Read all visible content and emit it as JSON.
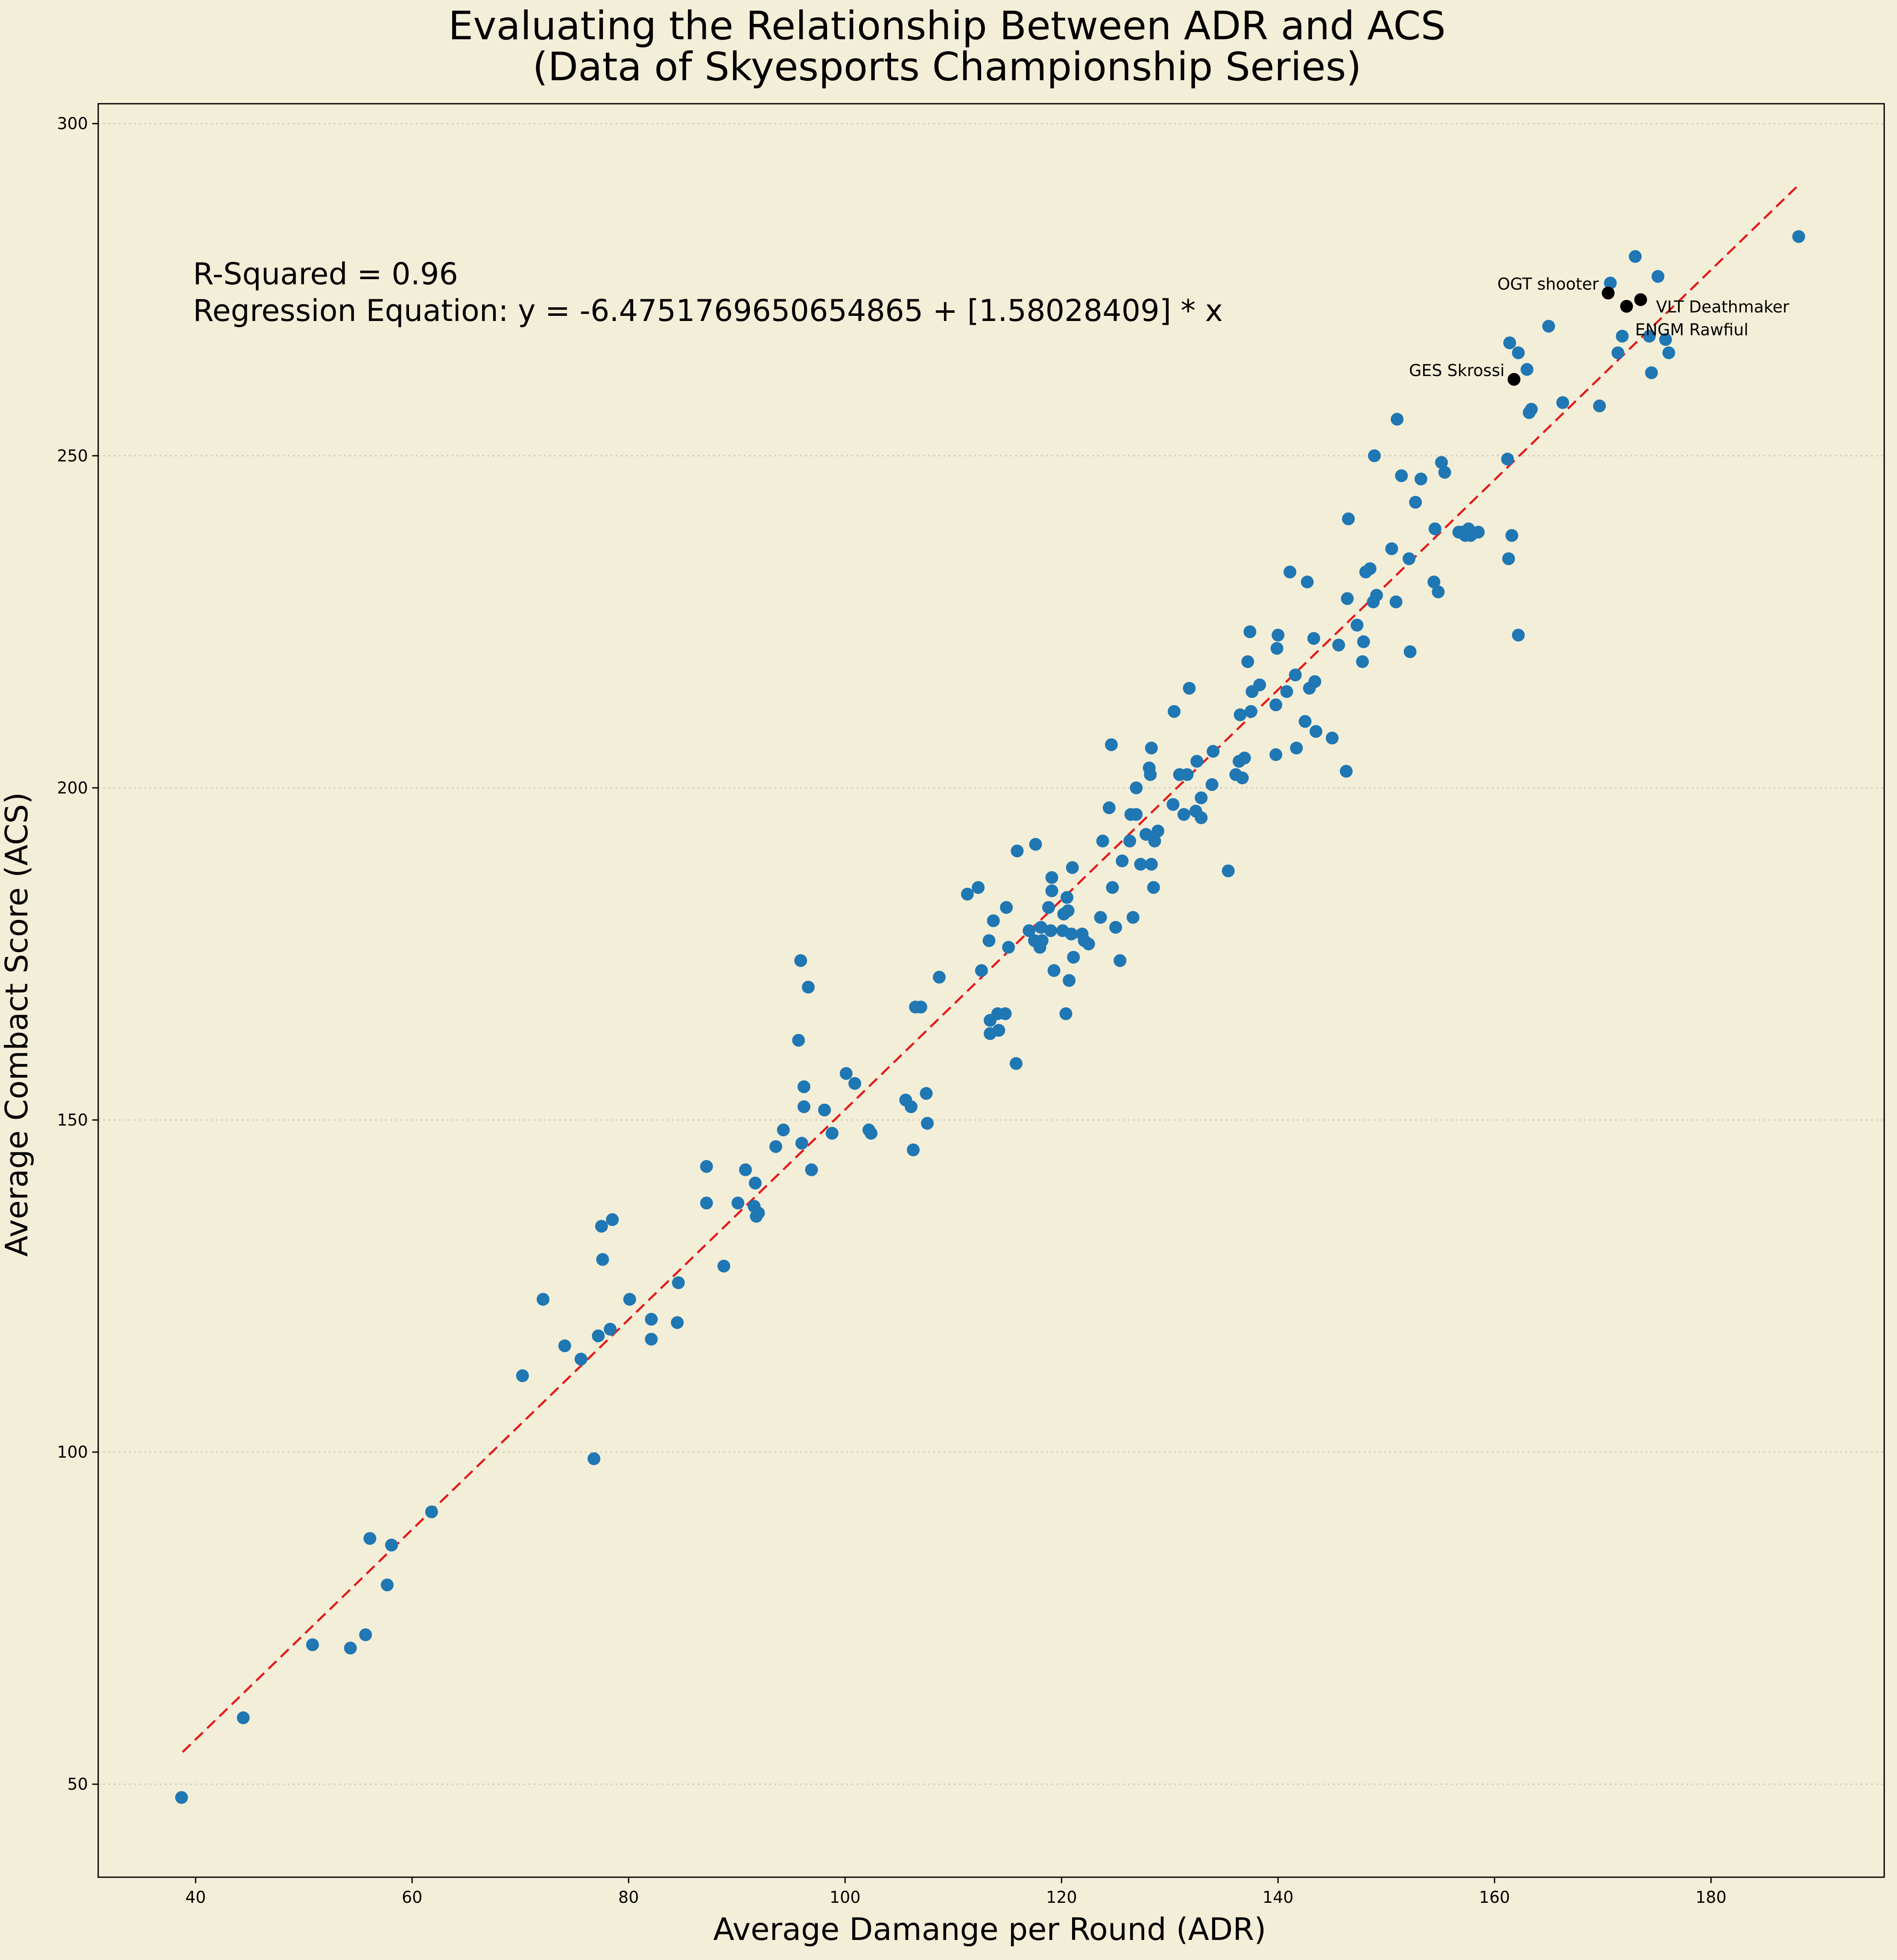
{
  "chart_data": {
    "type": "scatter",
    "title": "Evaluating the Relationship Between ADR  and ACS\n(Data of Skyesports Championship Series)",
    "xlabel": "Average Damange per Round (ADR)",
    "ylabel": "Average Combact Score (ACS)",
    "xlim": [
      31,
      196
    ],
    "ylim": [
      36,
      303
    ],
    "x_ticks": [
      40,
      60,
      80,
      100,
      120,
      140,
      160,
      180
    ],
    "y_ticks": [
      50,
      100,
      150,
      200,
      250,
      300
    ],
    "grid": "horizontal dotted",
    "annotation_text": [
      "R-Squared = 0.96",
      "Regression Equation: y = -6.4751769650654865 + [1.58028409] * x"
    ],
    "regression": {
      "intercept": -6.4751769650654865,
      "slope": 1.58028409,
      "x_range": [
        38.8,
        188.1
      ],
      "color": "#e41a1c"
    },
    "point_color": "#1f77b4",
    "highlight_color": "#000000",
    "series": [
      {
        "points": [
          [
            38.7,
            48
          ],
          [
            44.4,
            60
          ],
          [
            50.8,
            71
          ],
          [
            54.3,
            70.5
          ],
          [
            55.7,
            72.5
          ],
          [
            56.1,
            87
          ],
          [
            57.7,
            80
          ],
          [
            58.1,
            86
          ],
          [
            61.8,
            91
          ],
          [
            70.2,
            111.5
          ],
          [
            72.1,
            123
          ],
          [
            74.1,
            116
          ],
          [
            75.6,
            114
          ],
          [
            76.8,
            99
          ],
          [
            77.2,
            117.5
          ],
          [
            77.6,
            129
          ],
          [
            77.5,
            134
          ],
          [
            78.5,
            135
          ],
          [
            78.3,
            118.5
          ],
          [
            80.1,
            123
          ],
          [
            82.1,
            117
          ],
          [
            82.1,
            120
          ],
          [
            84.5,
            119.5
          ],
          [
            84.6,
            125.5
          ],
          [
            87.2,
            143
          ],
          [
            87.2,
            137.5
          ],
          [
            88.8,
            128
          ],
          [
            90.1,
            137.5
          ],
          [
            90.8,
            142.5
          ],
          [
            91.7,
            140.5
          ],
          [
            91.6,
            137
          ],
          [
            91.8,
            135.5
          ],
          [
            92,
            136
          ],
          [
            93.6,
            146
          ],
          [
            94.3,
            148.5
          ],
          [
            95.7,
            162
          ],
          [
            95.9,
            174
          ],
          [
            96,
            146.5
          ],
          [
            96.2,
            152
          ],
          [
            96.2,
            155
          ],
          [
            96.6,
            170
          ],
          [
            96.9,
            142.5
          ],
          [
            98.1,
            151.5
          ],
          [
            98.8,
            148
          ],
          [
            100.1,
            157
          ],
          [
            100.9,
            155.5
          ],
          [
            102.2,
            148.5
          ],
          [
            102.4,
            148
          ],
          [
            105.6,
            153
          ],
          [
            106.1,
            152
          ],
          [
            106.3,
            145.5
          ],
          [
            106.5,
            167
          ],
          [
            107,
            167
          ],
          [
            107.5,
            154
          ],
          [
            107.6,
            149.5
          ],
          [
            108.7,
            171.5
          ],
          [
            111.3,
            184
          ],
          [
            112.3,
            185
          ],
          [
            112.6,
            172.5
          ],
          [
            113.3,
            177
          ],
          [
            113.4,
            165
          ],
          [
            113.4,
            163
          ],
          [
            113.7,
            180
          ],
          [
            114.1,
            166
          ],
          [
            114.2,
            163.5
          ],
          [
            114.8,
            166
          ],
          [
            114.9,
            182
          ],
          [
            115.1,
            176
          ],
          [
            115.8,
            158.5
          ],
          [
            115.9,
            190.5
          ],
          [
            117,
            178.5
          ],
          [
            117.5,
            177
          ],
          [
            117.6,
            191.5
          ],
          [
            118,
            176
          ],
          [
            118.1,
            179
          ],
          [
            118.2,
            177
          ],
          [
            118.8,
            182
          ],
          [
            119.1,
            184.5
          ],
          [
            119.1,
            186.5
          ],
          [
            119,
            178.5
          ],
          [
            119.3,
            172.5
          ],
          [
            120.1,
            178.5
          ],
          [
            120.2,
            181
          ],
          [
            120.4,
            166
          ],
          [
            120.5,
            183.5
          ],
          [
            120.6,
            181.5
          ],
          [
            120.7,
            171
          ],
          [
            120.9,
            178
          ],
          [
            121,
            188
          ],
          [
            121.1,
            174.5
          ],
          [
            121.9,
            178
          ],
          [
            122.1,
            177
          ],
          [
            122.5,
            176.5
          ],
          [
            123.6,
            180.5
          ],
          [
            123.8,
            192
          ],
          [
            124.4,
            197
          ],
          [
            124.6,
            206.5
          ],
          [
            124.7,
            185
          ],
          [
            125,
            179
          ],
          [
            125.4,
            174
          ],
          [
            125.6,
            189
          ],
          [
            126.3,
            192
          ],
          [
            126.4,
            196
          ],
          [
            126.6,
            180.5
          ],
          [
            126.9,
            196
          ],
          [
            126.9,
            200
          ],
          [
            127.3,
            188.5
          ],
          [
            127.8,
            193
          ],
          [
            128.1,
            203
          ],
          [
            128.2,
            202
          ],
          [
            128.3,
            188.5
          ],
          [
            128.3,
            206
          ],
          [
            128.5,
            185
          ],
          [
            128.6,
            192
          ],
          [
            128.9,
            193.5
          ],
          [
            130.3,
            197.5
          ],
          [
            130.4,
            211.5
          ],
          [
            130.9,
            202
          ],
          [
            131.3,
            196
          ],
          [
            131.6,
            202
          ],
          [
            131.8,
            215
          ],
          [
            132.4,
            196.5
          ],
          [
            132.5,
            204
          ],
          [
            132.9,
            198.5
          ],
          [
            132.9,
            195.5
          ],
          [
            133.9,
            200.5
          ],
          [
            134,
            205.5
          ],
          [
            135.4,
            187.5
          ],
          [
            136.1,
            202
          ],
          [
            136.4,
            204
          ],
          [
            136.5,
            211
          ],
          [
            136.7,
            201.5
          ],
          [
            136.9,
            204.5
          ],
          [
            137.2,
            219
          ],
          [
            137.4,
            223.5
          ],
          [
            137.5,
            211.5
          ],
          [
            137.6,
            214.5
          ],
          [
            138.3,
            215.5
          ],
          [
            139.8,
            205
          ],
          [
            139.8,
            212.5
          ],
          [
            139.9,
            221
          ],
          [
            140,
            223
          ],
          [
            140.8,
            214.5
          ],
          [
            141.1,
            232.5
          ],
          [
            141.6,
            217
          ],
          [
            141.7,
            206
          ],
          [
            142.5,
            210
          ],
          [
            142.7,
            231
          ],
          [
            142.9,
            215
          ],
          [
            143.3,
            222.5
          ],
          [
            143.4,
            216
          ],
          [
            143.5,
            208.5
          ],
          [
            145,
            207.5
          ],
          [
            145.6,
            221.5
          ],
          [
            146.3,
            202.5
          ],
          [
            146.4,
            228.5
          ],
          [
            146.5,
            240.5
          ],
          [
            147.3,
            224.5
          ],
          [
            147.8,
            219
          ],
          [
            147.9,
            222
          ],
          [
            148.1,
            232.5
          ],
          [
            148.5,
            233
          ],
          [
            148.8,
            228
          ],
          [
            148.9,
            250
          ],
          [
            149.1,
            229
          ],
          [
            150.5,
            236
          ],
          [
            150.9,
            228
          ],
          [
            151,
            255.5
          ],
          [
            151.4,
            247
          ],
          [
            152.1,
            234.5
          ],
          [
            152.2,
            220.5
          ],
          [
            152.7,
            243
          ],
          [
            153.2,
            246.5
          ],
          [
            154.4,
            231
          ],
          [
            154.5,
            239
          ],
          [
            154.8,
            229.5
          ],
          [
            155.1,
            249
          ],
          [
            155.4,
            247.5
          ],
          [
            156.7,
            238.5
          ],
          [
            157,
            238.5
          ],
          [
            157.3,
            238
          ],
          [
            157.6,
            239
          ],
          [
            157.8,
            238
          ],
          [
            158.5,
            238.5
          ],
          [
            161.2,
            249.5
          ],
          [
            161.3,
            234.5
          ],
          [
            161.4,
            267
          ],
          [
            161.6,
            238
          ],
          [
            162.2,
            223
          ],
          [
            162.2,
            265.5
          ],
          [
            163,
            263
          ],
          [
            163.2,
            256.5
          ],
          [
            163.4,
            257
          ],
          [
            165,
            269.5
          ],
          [
            166.3,
            258
          ],
          [
            169.7,
            257.5
          ],
          [
            170.7,
            276
          ],
          [
            171.4,
            265.5
          ],
          [
            171.8,
            268
          ],
          [
            173,
            280
          ],
          [
            174.3,
            268
          ],
          [
            174.5,
            262.5
          ],
          [
            175.1,
            277
          ],
          [
            175.8,
            267.5
          ],
          [
            176.1,
            265.5
          ],
          [
            188.1,
            283
          ]
        ]
      },
      {
        "highlighted": [
          {
            "label": "OGT shooter",
            "x": 170.5,
            "y": 274.5,
            "anchor": "end"
          },
          {
            "label": "VLT Deathmaker",
            "x": 173.5,
            "y": 273.5,
            "anchor": "start"
          },
          {
            "label": "ENGM Rawfiul",
            "x": 172.2,
            "y": 272.5,
            "anchor": "start"
          },
          {
            "label": "GES Skrossi",
            "x": 161.8,
            "y": 261.5,
            "anchor": "end"
          }
        ]
      }
    ]
  }
}
